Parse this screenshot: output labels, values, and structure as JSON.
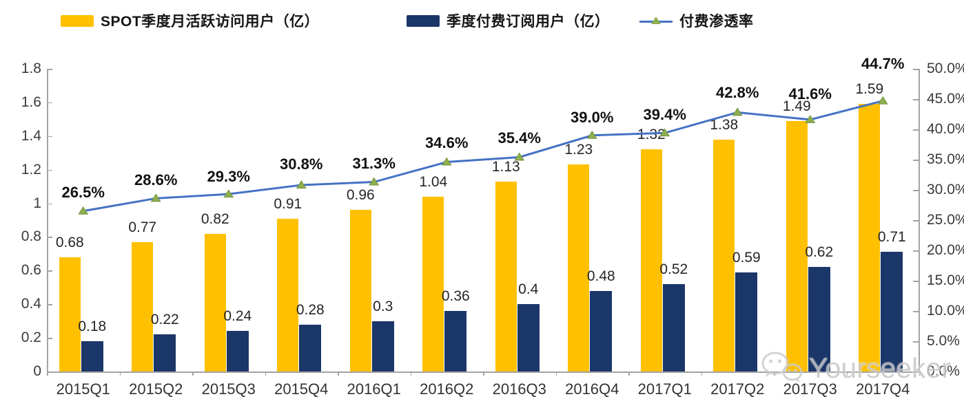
{
  "chart_data": {
    "type": "bar",
    "categories": [
      "2015Q1",
      "2015Q2",
      "2015Q3",
      "2015Q4",
      "2016Q1",
      "2016Q2",
      "2016Q3",
      "2016Q4",
      "2017Q1",
      "2017Q2",
      "2017Q3",
      "2017Q4"
    ],
    "series": [
      {
        "name": "SPOT季度月活跃访问用户（亿）",
        "type": "bar",
        "color": "#FFC000",
        "values": [
          0.68,
          0.77,
          0.82,
          0.91,
          0.96,
          1.04,
          1.13,
          1.23,
          1.32,
          1.38,
          1.49,
          1.59
        ]
      },
      {
        "name": "季度付费订阅用户（亿）",
        "type": "bar",
        "color": "#1B3668",
        "values": [
          0.18,
          0.22,
          0.24,
          0.28,
          0.3,
          0.36,
          0.4,
          0.48,
          0.52,
          0.59,
          0.62,
          0.71
        ]
      },
      {
        "name": "付费渗透率",
        "type": "line",
        "color": "#4472C4",
        "marker_color": "#8FAE4E",
        "marker_stroke": "#6E9340",
        "values": [
          26.5,
          28.6,
          29.3,
          30.8,
          31.3,
          34.6,
          35.4,
          39.0,
          39.4,
          42.8,
          41.6,
          44.7
        ],
        "label_suffix": "%"
      }
    ],
    "title": "",
    "xlabel": "",
    "ylabel": "",
    "left_axis": {
      "min": 0,
      "max": 1.8,
      "step": 0.2,
      "ticks": [
        "0",
        "0.2",
        "0.4",
        "0.6",
        "0.8",
        "1",
        "1.2",
        "1.4",
        "1.6",
        "1.8"
      ]
    },
    "right_axis": {
      "min": 0,
      "max": 50,
      "step": 5,
      "ticks": [
        "0.0%",
        "5.0%",
        "10.0%",
        "15.0%",
        "20.0%",
        "25.0%",
        "30.0%",
        "35.0%",
        "40.0%",
        "45.0%",
        "50.0%"
      ]
    },
    "legend_position": "top",
    "grid": false
  },
  "watermark": {
    "text": "Yourseeker"
  }
}
